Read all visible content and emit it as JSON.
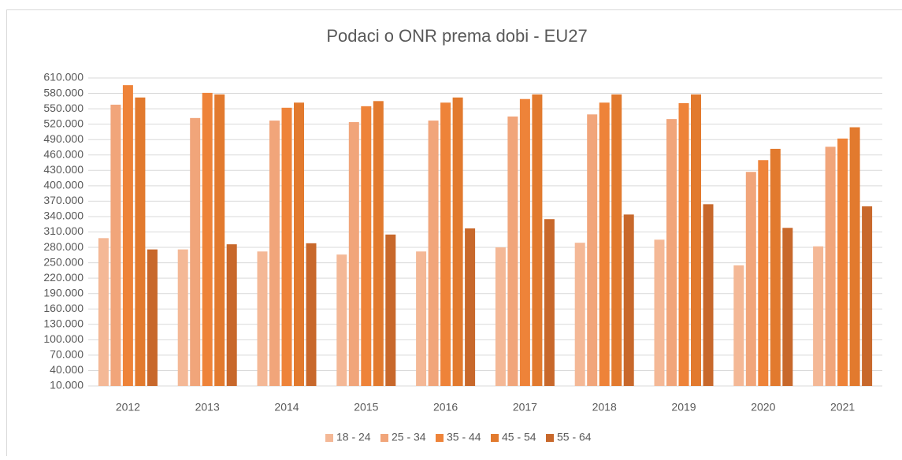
{
  "chart_data": {
    "type": "bar",
    "title": "Podaci o ONR prema dobi - EU27",
    "categories": [
      "2012",
      "2013",
      "2014",
      "2015",
      "2016",
      "2017",
      "2018",
      "2019",
      "2020",
      "2021"
    ],
    "series": [
      {
        "name": "18 - 24",
        "color": "#f4b896",
        "values": [
          298000,
          276000,
          272000,
          266000,
          272000,
          280000,
          289000,
          295000,
          245000,
          282000
        ]
      },
      {
        "name": "25 - 34",
        "color": "#f1a57a",
        "values": [
          558000,
          532000,
          527000,
          524000,
          527000,
          535000,
          539000,
          530000,
          427000,
          476000
        ]
      },
      {
        "name": "35 - 44",
        "color": "#ee8339",
        "values": [
          596000,
          581000,
          552000,
          555000,
          562000,
          569000,
          562000,
          561000,
          450000,
          492000
        ]
      },
      {
        "name": "45 - 54",
        "color": "#e27a2e",
        "values": [
          572000,
          578000,
          562000,
          565000,
          572000,
          578000,
          578000,
          578000,
          472000,
          514000
        ]
      },
      {
        "name": "55 - 64",
        "color": "#c8682b",
        "values": [
          276000,
          286000,
          288000,
          305000,
          317000,
          335000,
          344000,
          364000,
          318000,
          360000
        ]
      }
    ],
    "ylim": [
      10000,
      610000
    ],
    "yticks": [
      {
        "value": 10000,
        "label": "10.000"
      },
      {
        "value": 40000,
        "label": "40.000"
      },
      {
        "value": 70000,
        "label": "70.000"
      },
      {
        "value": 100000,
        "label": "100.000"
      },
      {
        "value": 130000,
        "label": "130.000"
      },
      {
        "value": 160000,
        "label": "160.000"
      },
      {
        "value": 190000,
        "label": "190.000"
      },
      {
        "value": 220000,
        "label": "220.000"
      },
      {
        "value": 250000,
        "label": "250.000"
      },
      {
        "value": 280000,
        "label": "280.000"
      },
      {
        "value": 310000,
        "label": "310.000"
      },
      {
        "value": 340000,
        "label": "340.000"
      },
      {
        "value": 370000,
        "label": "370.000"
      },
      {
        "value": 400000,
        "label": "400.000"
      },
      {
        "value": 430000,
        "label": "430.000"
      },
      {
        "value": 460000,
        "label": "460.000"
      },
      {
        "value": 490000,
        "label": "490.000"
      },
      {
        "value": 520000,
        "label": "520.000"
      },
      {
        "value": 550000,
        "label": "550.000"
      },
      {
        "value": 580000,
        "label": "580.000"
      },
      {
        "value": 610000,
        "label": "610.000"
      }
    ],
    "grid": true,
    "legend": "bottom"
  }
}
